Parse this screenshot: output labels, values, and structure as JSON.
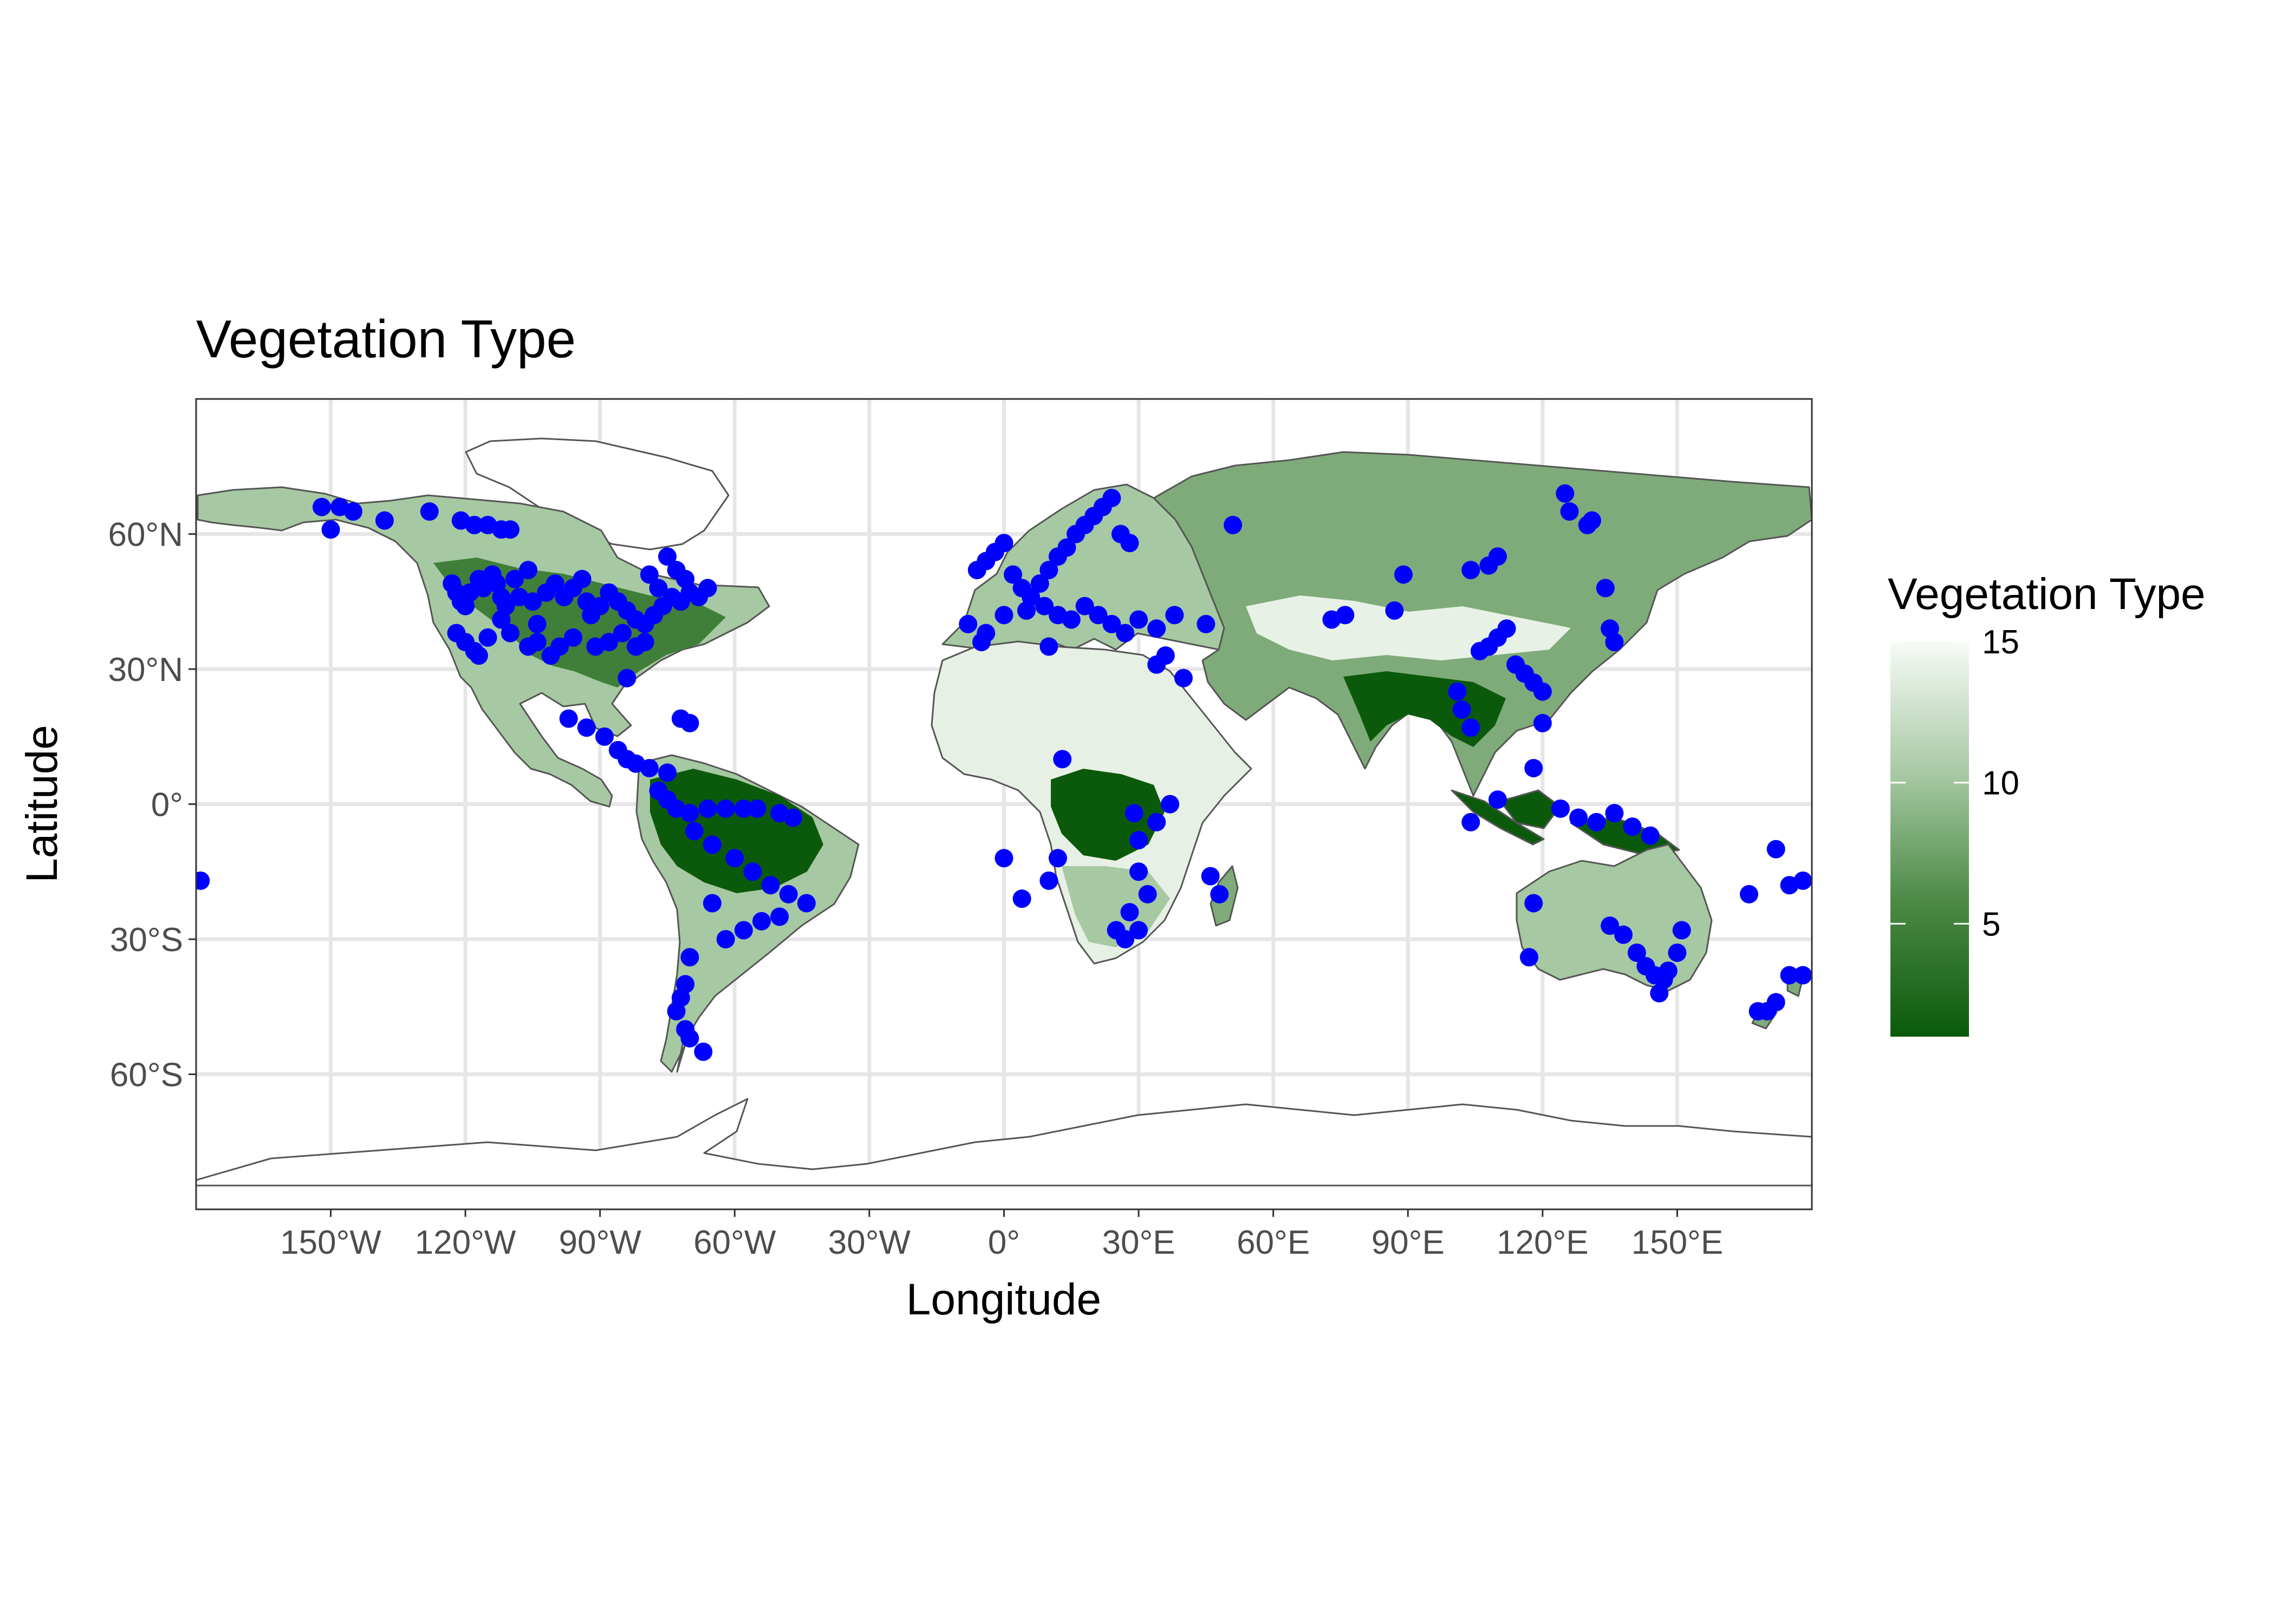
{
  "title": "Vegetation Type",
  "x_axis": {
    "label": "Longitude",
    "range": [
      -180,
      180
    ],
    "ticks": [
      {
        "value": -150,
        "label": "150°W"
      },
      {
        "value": -120,
        "label": "120°W"
      },
      {
        "value": -90,
        "label": "90°W"
      },
      {
        "value": -60,
        "label": "60°W"
      },
      {
        "value": -30,
        "label": "30°W"
      },
      {
        "value": 0,
        "label": "0°"
      },
      {
        "value": 30,
        "label": "30°E"
      },
      {
        "value": 60,
        "label": "60°E"
      },
      {
        "value": 90,
        "label": "90°E"
      },
      {
        "value": 120,
        "label": "120°E"
      },
      {
        "value": 150,
        "label": "150°E"
      }
    ]
  },
  "y_axis": {
    "label": "Latitude",
    "range": [
      -90,
      90
    ],
    "ticks": [
      {
        "value": 60,
        "label": "60°N"
      },
      {
        "value": 30,
        "label": "30°N"
      },
      {
        "value": 0,
        "label": "0°"
      },
      {
        "value": -30,
        "label": "30°S"
      },
      {
        "value": -60,
        "label": "60°S"
      }
    ]
  },
  "legend": {
    "title": "Vegetation Type",
    "min": 1,
    "max": 15,
    "ticks": [
      {
        "value": 15,
        "label": "15"
      },
      {
        "value": 10,
        "label": "10"
      },
      {
        "value": 5,
        "label": "5"
      }
    ],
    "color_low": "#0b5a0b",
    "color_high": "#f7fbf7",
    "placement": "right"
  },
  "colors": {
    "points": "#0000ff",
    "ocean": "#ffffff",
    "grid": "#e6e6e6",
    "border": "#555555"
  },
  "chart_data": {
    "type": "scatter",
    "grid": true,
    "points": [
      [
        -179,
        -17
      ],
      [
        -152,
        66
      ],
      [
        -148,
        66
      ],
      [
        -145,
        65
      ],
      [
        -150,
        61
      ],
      [
        -138,
        63
      ],
      [
        -128,
        65
      ],
      [
        -121,
        63
      ],
      [
        -118,
        62
      ],
      [
        -115,
        62
      ],
      [
        -112,
        61
      ],
      [
        -110,
        61
      ],
      [
        -123,
        49
      ],
      [
        -122,
        47
      ],
      [
        -121,
        45
      ],
      [
        -120,
        44
      ],
      [
        -119,
        47
      ],
      [
        -117,
        50
      ],
      [
        -116,
        48
      ],
      [
        -114,
        51
      ],
      [
        -113,
        49
      ],
      [
        -112,
        46
      ],
      [
        -111,
        44
      ],
      [
        -109,
        50
      ],
      [
        -108,
        46
      ],
      [
        -106,
        52
      ],
      [
        -105,
        45
      ],
      [
        -104,
        40
      ],
      [
        -102,
        47
      ],
      [
        -100,
        49
      ],
      [
        -98,
        46
      ],
      [
        -96,
        48
      ],
      [
        -94,
        50
      ],
      [
        -93,
        45
      ],
      [
        -92,
        42
      ],
      [
        -90,
        44
      ],
      [
        -88,
        47
      ],
      [
        -86,
        45
      ],
      [
        -84,
        43
      ],
      [
        -82,
        41
      ],
      [
        -80,
        40
      ],
      [
        -78,
        42
      ],
      [
        -76,
        44
      ],
      [
        -74,
        46
      ],
      [
        -72,
        45
      ],
      [
        -70,
        47
      ],
      [
        -68,
        46
      ],
      [
        -66,
        48
      ],
      [
        -75,
        55
      ],
      [
        -73,
        52
      ],
      [
        -71,
        50
      ],
      [
        -79,
        51
      ],
      [
        -77,
        48
      ],
      [
        -80,
        36
      ],
      [
        -82,
        35
      ],
      [
        -85,
        38
      ],
      [
        -88,
        36
      ],
      [
        -91,
        35
      ],
      [
        -96,
        37
      ],
      [
        -99,
        35
      ],
      [
        -101,
        33
      ],
      [
        -104,
        36
      ],
      [
        -106,
        35
      ],
      [
        -110,
        38
      ],
      [
        -112,
        41
      ],
      [
        -115,
        37
      ],
      [
        -118,
        34
      ],
      [
        -120,
        36
      ],
      [
        -122,
        38
      ],
      [
        -117,
        33
      ],
      [
        -84,
        28
      ],
      [
        -97,
        19
      ],
      [
        -93,
        17
      ],
      [
        -89,
        15
      ],
      [
        -86,
        12
      ],
      [
        -84,
        10
      ],
      [
        -82,
        9
      ],
      [
        -79,
        8
      ],
      [
        -75,
        7
      ],
      [
        -72,
        19
      ],
      [
        -70,
        18
      ],
      [
        -77,
        3
      ],
      [
        -75,
        1
      ],
      [
        -73,
        -1
      ],
      [
        -70,
        -2
      ],
      [
        -66,
        -1
      ],
      [
        -62,
        -1
      ],
      [
        -58,
        -1
      ],
      [
        -55,
        -1
      ],
      [
        -50,
        -2
      ],
      [
        -47,
        -3
      ],
      [
        -69,
        -6
      ],
      [
        -65,
        -9
      ],
      [
        -60,
        -12
      ],
      [
        -56,
        -15
      ],
      [
        -52,
        -18
      ],
      [
        -48,
        -20
      ],
      [
        -44,
        -22
      ],
      [
        -50,
        -25
      ],
      [
        -54,
        -26
      ],
      [
        -58,
        -28
      ],
      [
        -62,
        -30
      ],
      [
        -65,
        -22
      ],
      [
        -70,
        -34
      ],
      [
        -71,
        -40
      ],
      [
        -72,
        -43
      ],
      [
        -73,
        -46
      ],
      [
        -71,
        -50
      ],
      [
        -70,
        -52
      ],
      [
        -67,
        -55
      ],
      [
        -6,
        52
      ],
      [
        -4,
        54
      ],
      [
        -2,
        56
      ],
      [
        0,
        58
      ],
      [
        2,
        51
      ],
      [
        4,
        48
      ],
      [
        6,
        46
      ],
      [
        8,
        49
      ],
      [
        10,
        52
      ],
      [
        12,
        55
      ],
      [
        14,
        57
      ],
      [
        16,
        60
      ],
      [
        18,
        62
      ],
      [
        20,
        64
      ],
      [
        22,
        66
      ],
      [
        24,
        68
      ],
      [
        26,
        60
      ],
      [
        28,
        58
      ],
      [
        -8,
        40
      ],
      [
        -4,
        38
      ],
      [
        0,
        42
      ],
      [
        5,
        43
      ],
      [
        9,
        44
      ],
      [
        12,
        42
      ],
      [
        15,
        41
      ],
      [
        18,
        44
      ],
      [
        21,
        42
      ],
      [
        24,
        40
      ],
      [
        27,
        38
      ],
      [
        30,
        41
      ],
      [
        34,
        39
      ],
      [
        38,
        42
      ],
      [
        45,
        40
      ],
      [
        51,
        62
      ],
      [
        -5,
        36
      ],
      [
        10,
        35
      ],
      [
        34,
        31
      ],
      [
        36,
        33
      ],
      [
        40,
        28
      ],
      [
        0,
        -12
      ],
      [
        4,
        -21
      ],
      [
        10,
        -17
      ],
      [
        12,
        -12
      ],
      [
        13,
        10
      ],
      [
        30,
        -8
      ],
      [
        29,
        -2
      ],
      [
        34,
        -4
      ],
      [
        37,
        0
      ],
      [
        30,
        -15
      ],
      [
        32,
        -20
      ],
      [
        28,
        -24
      ],
      [
        25,
        -28
      ],
      [
        27,
        -30
      ],
      [
        30,
        -28
      ],
      [
        48,
        -20
      ],
      [
        46,
        -16
      ],
      [
        73,
        41
      ],
      [
        76,
        42
      ],
      [
        87,
        43
      ],
      [
        89,
        51
      ],
      [
        101,
        25
      ],
      [
        102,
        21
      ],
      [
        104,
        17
      ],
      [
        106,
        34
      ],
      [
        108,
        35
      ],
      [
        110,
        37
      ],
      [
        112,
        39
      ],
      [
        114,
        31
      ],
      [
        116,
        29
      ],
      [
        118,
        27
      ],
      [
        120,
        25
      ],
      [
        104,
        52
      ],
      [
        108,
        53
      ],
      [
        110,
        55
      ],
      [
        120,
        18
      ],
      [
        125,
        69
      ],
      [
        126,
        65
      ],
      [
        130,
        62
      ],
      [
        131,
        63
      ],
      [
        134,
        48
      ],
      [
        135,
        39
      ],
      [
        136,
        36
      ],
      [
        110,
        1
      ],
      [
        118,
        8
      ],
      [
        124,
        -1
      ],
      [
        128,
        -3
      ],
      [
        132,
        -4
      ],
      [
        136,
        -2
      ],
      [
        140,
        -5
      ],
      [
        144,
        -7
      ],
      [
        104,
        -4
      ],
      [
        118,
        -22
      ],
      [
        117,
        -34
      ],
      [
        135,
        -27
      ],
      [
        138,
        -29
      ],
      [
        141,
        -33
      ],
      [
        143,
        -36
      ],
      [
        145,
        -38
      ],
      [
        147,
        -39
      ],
      [
        148,
        -37
      ],
      [
        150,
        -33
      ],
      [
        151,
        -28
      ],
      [
        146,
        -42
      ],
      [
        172,
        -10
      ],
      [
        166,
        -20
      ],
      [
        175,
        -18
      ],
      [
        178,
        -17
      ],
      [
        170,
        -46
      ],
      [
        172,
        -44
      ],
      [
        175,
        -38
      ],
      [
        178,
        -38
      ],
      [
        168,
        -46
      ]
    ]
  }
}
